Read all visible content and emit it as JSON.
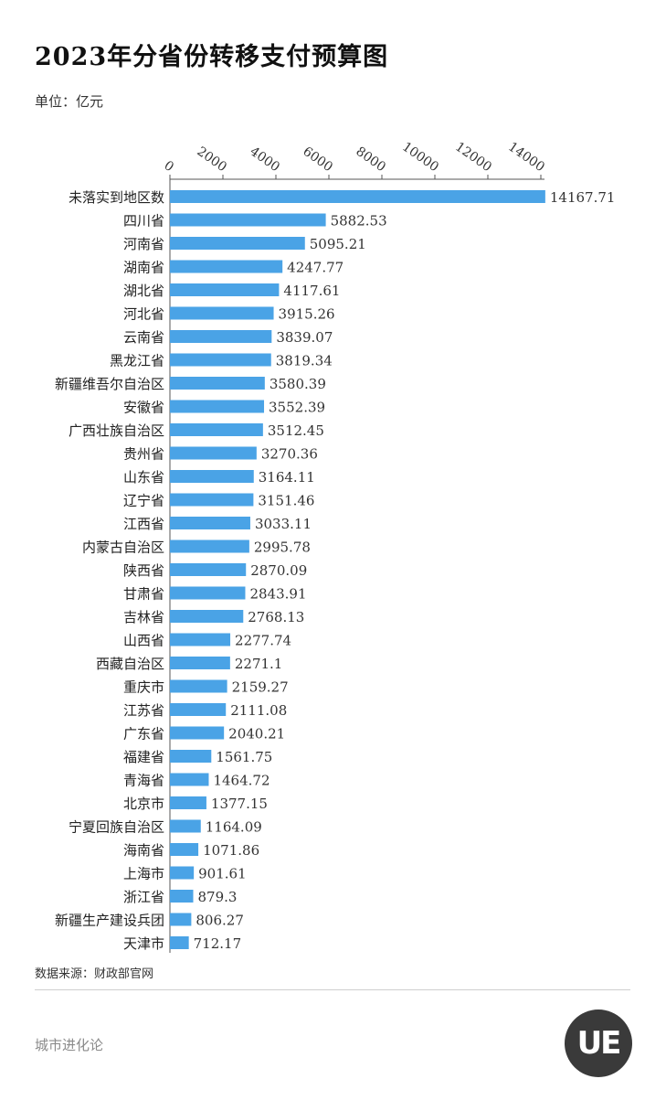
{
  "title": "2023年分省份转移支付预算图",
  "unit": "单位：亿元",
  "source": "数据来源：财政部官网",
  "brand": "城市进化论",
  "logo_text": "UE",
  "colors": {
    "bar": "#4aa3e6",
    "axis": "#555555"
  },
  "chart_data": {
    "type": "bar",
    "orientation": "horizontal",
    "xlim": [
      0,
      14000
    ],
    "ticks": [
      0,
      2000,
      4000,
      6000,
      8000,
      10000,
      12000,
      14000
    ],
    "tick_labels": [
      "0",
      "2000",
      "4000",
      "6000",
      "8000",
      "10000",
      "12000",
      "14000"
    ],
    "axis_position": "top",
    "grid": false,
    "categories": [
      "未落实到地区数",
      "四川省",
      "河南省",
      "湖南省",
      "湖北省",
      "河北省",
      "云南省",
      "黑龙江省",
      "新疆维吾尔自治区",
      "安徽省",
      "广西壮族自治区",
      "贵州省",
      "山东省",
      "辽宁省",
      "江西省",
      "内蒙古自治区",
      "陕西省",
      "甘肃省",
      "吉林省",
      "山西省",
      "西藏自治区",
      "重庆市",
      "江苏省",
      "广东省",
      "福建省",
      "青海省",
      "北京市",
      "宁夏回族自治区",
      "海南省",
      "上海市",
      "浙江省",
      "新疆生产建设兵团",
      "天津市"
    ],
    "values": [
      14167.71,
      5882.53,
      5095.21,
      4247.77,
      4117.61,
      3915.26,
      3839.07,
      3819.34,
      3580.39,
      3552.39,
      3512.45,
      3270.36,
      3164.11,
      3151.46,
      3033.11,
      2995.78,
      2870.09,
      2843.91,
      2768.13,
      2277.74,
      2271.1,
      2159.27,
      2111.08,
      2040.21,
      1561.75,
      1464.72,
      1377.15,
      1164.09,
      1071.86,
      901.61,
      879.3,
      806.27,
      712.17
    ],
    "value_labels": [
      "14167.71",
      "5882.53",
      "5095.21",
      "4247.77",
      "4117.61",
      "3915.26",
      "3839.07",
      "3819.34",
      "3580.39",
      "3552.39",
      "3512.45",
      "3270.36",
      "3164.11",
      "3151.46",
      "3033.11",
      "2995.78",
      "2870.09",
      "2843.91",
      "2768.13",
      "2277.74",
      "2271.1",
      "2159.27",
      "2111.08",
      "2040.21",
      "1561.75",
      "1464.72",
      "1377.15",
      "1164.09",
      "1071.86",
      "901.61",
      "879.3",
      "806.27",
      "712.17"
    ]
  }
}
